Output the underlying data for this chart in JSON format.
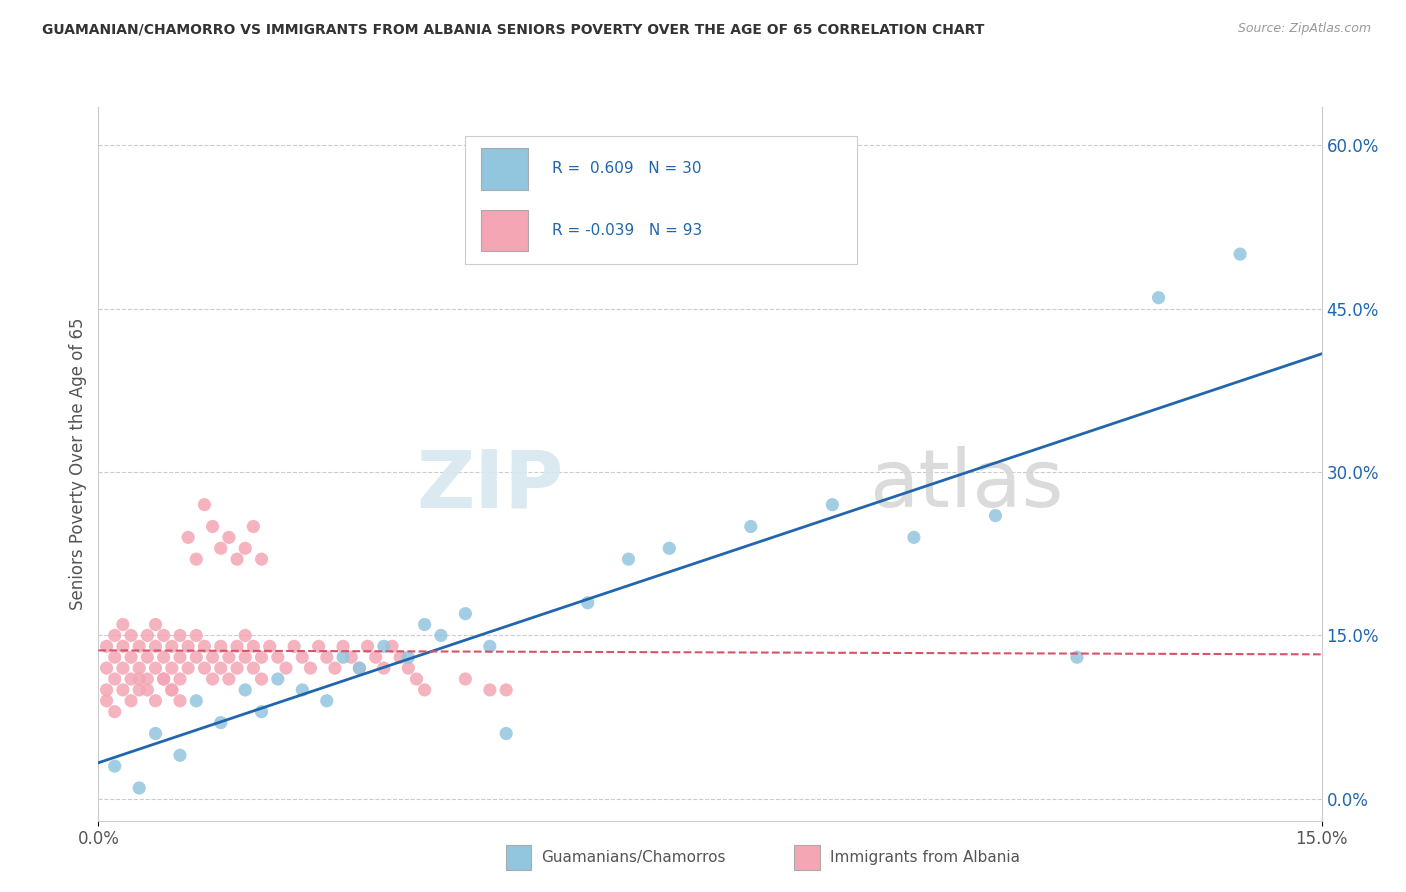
{
  "title": "GUAMANIAN/CHAMORRO VS IMMIGRANTS FROM ALBANIA SENIORS POVERTY OVER THE AGE OF 65 CORRELATION CHART",
  "source": "Source: ZipAtlas.com",
  "ylabel": "Seniors Poverty Over the Age of 65",
  "xmin": 0.0,
  "xmax": 0.15,
  "ymin": -0.02,
  "ymax": 0.635,
  "right_yticks": [
    0.0,
    0.15,
    0.3,
    0.45,
    0.6
  ],
  "right_yticklabels": [
    "0.0%",
    "15.0%",
    "30.0%",
    "45.0%",
    "60.0%"
  ],
  "blue_color": "#92c5de",
  "blue_line_color": "#2166ac",
  "pink_color": "#f4a6b4",
  "pink_line_color": "#d6546a",
  "watermark_zip": "ZIP",
  "watermark_atlas": "atlas",
  "background_color": "#ffffff",
  "grid_color": "#cccccc",
  "blue_scatter_x": [
    0.002,
    0.005,
    0.007,
    0.01,
    0.012,
    0.015,
    0.018,
    0.02,
    0.022,
    0.025,
    0.028,
    0.03,
    0.032,
    0.035,
    0.038,
    0.04,
    0.042,
    0.045,
    0.048,
    0.05,
    0.06,
    0.065,
    0.07,
    0.08,
    0.09,
    0.1,
    0.11,
    0.12,
    0.13,
    0.14
  ],
  "blue_scatter_y": [
    0.03,
    0.01,
    0.06,
    0.04,
    0.09,
    0.07,
    0.1,
    0.08,
    0.11,
    0.1,
    0.09,
    0.13,
    0.12,
    0.14,
    0.13,
    0.16,
    0.15,
    0.17,
    0.14,
    0.06,
    0.18,
    0.22,
    0.23,
    0.25,
    0.27,
    0.24,
    0.26,
    0.13,
    0.46,
    0.5
  ],
  "pink_scatter_x": [
    0.001,
    0.001,
    0.001,
    0.002,
    0.002,
    0.002,
    0.003,
    0.003,
    0.003,
    0.004,
    0.004,
    0.004,
    0.005,
    0.005,
    0.005,
    0.006,
    0.006,
    0.006,
    0.007,
    0.007,
    0.007,
    0.008,
    0.008,
    0.008,
    0.009,
    0.009,
    0.009,
    0.01,
    0.01,
    0.01,
    0.011,
    0.011,
    0.012,
    0.012,
    0.013,
    0.013,
    0.014,
    0.014,
    0.015,
    0.015,
    0.016,
    0.016,
    0.017,
    0.017,
    0.018,
    0.018,
    0.019,
    0.019,
    0.02,
    0.02,
    0.021,
    0.022,
    0.023,
    0.024,
    0.025,
    0.026,
    0.027,
    0.028,
    0.029,
    0.03,
    0.031,
    0.032,
    0.033,
    0.034,
    0.035,
    0.036,
    0.037,
    0.038,
    0.039,
    0.04,
    0.001,
    0.002,
    0.003,
    0.004,
    0.005,
    0.006,
    0.007,
    0.008,
    0.009,
    0.01,
    0.011,
    0.012,
    0.013,
    0.014,
    0.015,
    0.016,
    0.017,
    0.018,
    0.019,
    0.02,
    0.045,
    0.048,
    0.05
  ],
  "pink_scatter_y": [
    0.12,
    0.14,
    0.1,
    0.13,
    0.15,
    0.11,
    0.14,
    0.12,
    0.16,
    0.13,
    0.11,
    0.15,
    0.12,
    0.14,
    0.1,
    0.13,
    0.15,
    0.11,
    0.14,
    0.12,
    0.16,
    0.13,
    0.11,
    0.15,
    0.12,
    0.14,
    0.1,
    0.13,
    0.15,
    0.11,
    0.14,
    0.12,
    0.13,
    0.15,
    0.12,
    0.14,
    0.11,
    0.13,
    0.12,
    0.14,
    0.13,
    0.11,
    0.14,
    0.12,
    0.13,
    0.15,
    0.12,
    0.14,
    0.11,
    0.13,
    0.14,
    0.13,
    0.12,
    0.14,
    0.13,
    0.12,
    0.14,
    0.13,
    0.12,
    0.14,
    0.13,
    0.12,
    0.14,
    0.13,
    0.12,
    0.14,
    0.13,
    0.12,
    0.11,
    0.1,
    0.09,
    0.08,
    0.1,
    0.09,
    0.11,
    0.1,
    0.09,
    0.11,
    0.1,
    0.09,
    0.24,
    0.22,
    0.27,
    0.25,
    0.23,
    0.24,
    0.22,
    0.23,
    0.25,
    0.22,
    0.11,
    0.1,
    0.1
  ]
}
